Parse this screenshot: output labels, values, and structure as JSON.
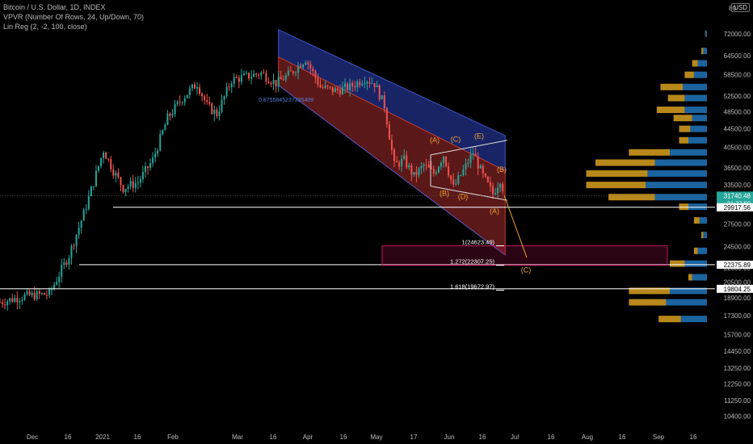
{
  "legend": {
    "line1": "Bitcoin / U.S. Dollar, 1D, INDEX",
    "line2": "VPVR (Number Of Rows, 24, Up/Down, 70)",
    "line3": "Lin Reg (2, -2, 100, close)"
  },
  "currency_badge": "USD",
  "price_top_label": "80",
  "colors": {
    "background": "#000000",
    "up_candle": "#26a69a",
    "down_candle": "#ef5350",
    "channel_upper": "#1c2a78",
    "channel_lower": "#6b1c1c",
    "vp_up": "#1e6fb0",
    "vp_down": "#d8a020",
    "target_box": "#c2185b",
    "wave_label": "#f0a030"
  },
  "chart_data": {
    "type": "candlestick",
    "symbol": "Bitcoin / U.S. Dollar",
    "interval": "1D",
    "y_scale": "log",
    "ylim": [
      9800,
      82000
    ],
    "x_tick_labels": [
      "Dec",
      "16",
      "2021",
      "16",
      "Feb",
      "Mar",
      "16",
      "Apr",
      "16",
      "May",
      "17",
      "Jun",
      "16",
      "Jul",
      "16",
      "Aug",
      "16",
      "Sep",
      "16"
    ],
    "y_tick_labels": [
      "72000.00",
      "64500.00",
      "58500.00",
      "52500.00",
      "48500.00",
      "44500.00",
      "40500.00",
      "36500.00",
      "33500.00",
      "30000.00",
      "27500.00",
      "24500.00",
      "22000.00",
      "20500.00",
      "18900.00",
      "17300.00",
      "15700.00",
      "14450.00",
      "13250.00",
      "12250.00",
      "11250.00",
      "10400.00"
    ],
    "price_marks": [
      {
        "label": "31740.48",
        "sub": "21:27:59",
        "value": 31740.48,
        "color": "#26a69a"
      },
      {
        "label": "29917.56",
        "value": 29917.56,
        "color": "#ffffff"
      },
      {
        "label": "22375.89",
        "value": 22375.89,
        "color": "#ffffff"
      },
      {
        "label": "19804.25",
        "value": 19804.25,
        "color": "#ffffff"
      }
    ],
    "horizontal_lines": [
      {
        "value": 29917.56,
        "from": "2021-01-05"
      },
      {
        "value": 22375.89,
        "from": "2020-12-22"
      },
      {
        "value": 19804.25,
        "from": "2020-12-01"
      }
    ],
    "fib_levels": [
      {
        "label": "1(24623.49)",
        "value": 24623.49
      },
      {
        "label": "1.272(22307.25)",
        "value": 22307.25
      },
      {
        "label": "1.618(19672.97)",
        "value": 19672.97
      }
    ],
    "lin_reg_label": "0.8755845237335409",
    "wave_labels": [
      "(A)",
      "(B)",
      "(C)",
      "(D)",
      "(E)",
      "(B)",
      "(A)",
      "(C)"
    ],
    "volume_profile": [
      {
        "price": 72000,
        "up": 0.008,
        "down": 0.002
      },
      {
        "price": 66000,
        "up": 0.02,
        "down": 0.01
      },
      {
        "price": 62000,
        "up": 0.05,
        "down": 0.03
      },
      {
        "price": 58500,
        "up": 0.07,
        "down": 0.05
      },
      {
        "price": 55000,
        "up": 0.13,
        "down": 0.12
      },
      {
        "price": 52000,
        "up": 0.12,
        "down": 0.09
      },
      {
        "price": 49000,
        "up": 0.12,
        "down": 0.15
      },
      {
        "price": 47000,
        "up": 0.08,
        "down": 0.1
      },
      {
        "price": 44500,
        "up": 0.09,
        "down": 0.06
      },
      {
        "price": 42000,
        "up": 0.1,
        "down": 0.05
      },
      {
        "price": 39500,
        "up": 0.2,
        "down": 0.22
      },
      {
        "price": 37500,
        "up": 0.28,
        "down": 0.32
      },
      {
        "price": 35500,
        "up": 0.32,
        "down": 0.33
      },
      {
        "price": 33500,
        "up": 0.33,
        "down": 0.32
      },
      {
        "price": 31500,
        "up": 0.28,
        "down": 0.25
      },
      {
        "price": 30000,
        "up": 0.1,
        "down": 0.05
      },
      {
        "price": 28000,
        "up": 0.04,
        "down": 0.03
      },
      {
        "price": 26000,
        "up": 0.02,
        "down": 0.01
      },
      {
        "price": 24000,
        "up": 0.05,
        "down": 0.02
      },
      {
        "price": 22500,
        "up": 0.12,
        "down": 0.08
      },
      {
        "price": 21000,
        "up": 0.08,
        "down": 0.02
      },
      {
        "price": 19600,
        "up": 0.2,
        "down": 0.22
      },
      {
        "price": 18500,
        "up": 0.22,
        "down": 0.2
      },
      {
        "price": 17000,
        "up": 0.14,
        "down": 0.12
      }
    ],
    "price_path": [
      {
        "d": 0,
        "p": 18500
      },
      {
        "d": 10,
        "p": 19100
      },
      {
        "d": 20,
        "p": 19300
      },
      {
        "d": 28,
        "p": 23500
      },
      {
        "d": 34,
        "p": 29000
      },
      {
        "d": 38,
        "p": 34000
      },
      {
        "d": 42,
        "p": 40000
      },
      {
        "d": 46,
        "p": 36000
      },
      {
        "d": 50,
        "p": 33000
      },
      {
        "d": 56,
        "p": 34000
      },
      {
        "d": 62,
        "p": 38000
      },
      {
        "d": 68,
        "p": 47000
      },
      {
        "d": 74,
        "p": 52000
      },
      {
        "d": 80,
        "p": 56000
      },
      {
        "d": 84,
        "p": 50000
      },
      {
        "d": 88,
        "p": 48000
      },
      {
        "d": 94,
        "p": 57000
      },
      {
        "d": 100,
        "p": 58000
      },
      {
        "d": 106,
        "p": 59000
      },
      {
        "d": 112,
        "p": 56000
      },
      {
        "d": 118,
        "p": 59000
      },
      {
        "d": 124,
        "p": 63500
      },
      {
        "d": 130,
        "p": 55000
      },
      {
        "d": 136,
        "p": 54000
      },
      {
        "d": 142,
        "p": 55000
      },
      {
        "d": 148,
        "p": 57500
      },
      {
        "d": 152,
        "p": 56000
      },
      {
        "d": 156,
        "p": 50000
      },
      {
        "d": 160,
        "p": 37000
      },
      {
        "d": 164,
        "p": 38000
      },
      {
        "d": 168,
        "p": 35000
      },
      {
        "d": 172,
        "p": 37000
      },
      {
        "d": 176,
        "p": 35500
      },
      {
        "d": 180,
        "p": 39000
      },
      {
        "d": 184,
        "p": 33000
      },
      {
        "d": 188,
        "p": 36000
      },
      {
        "d": 192,
        "p": 39500
      },
      {
        "d": 196,
        "p": 35000
      },
      {
        "d": 200,
        "p": 32000
      },
      {
        "d": 203,
        "p": 34500
      },
      {
        "d": 205,
        "p": 31740
      }
    ]
  }
}
